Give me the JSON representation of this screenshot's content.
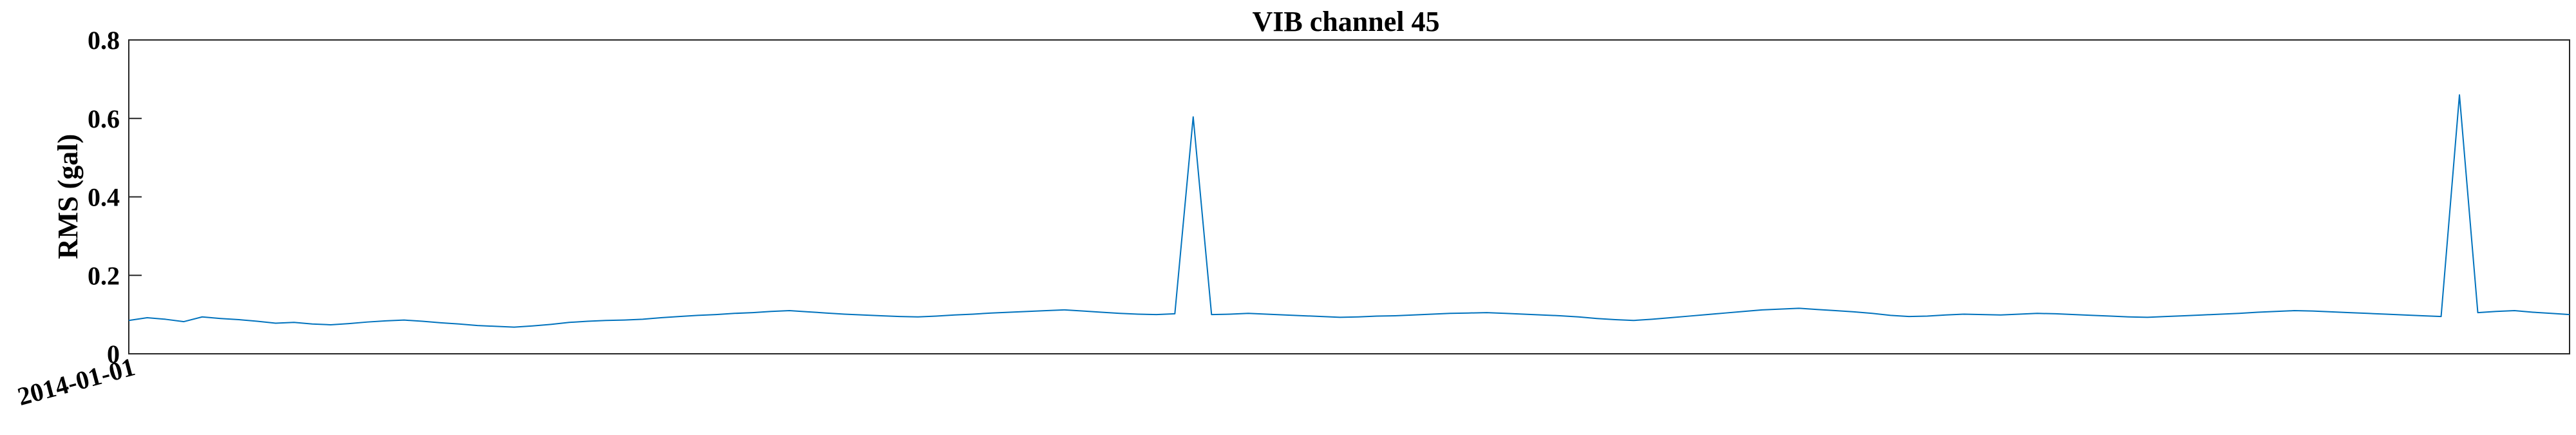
{
  "chart_data": {
    "type": "line",
    "title": "VIB channel 45",
    "xlabel": "",
    "ylabel": "RMS (gal)",
    "ylim": [
      0,
      0.8
    ],
    "yticks": [
      0,
      0.2,
      0.4,
      0.6,
      0.8
    ],
    "ytick_labels": [
      "0",
      "0.2",
      "0.4",
      "0.6",
      "0.8"
    ],
    "xlim": [
      0,
      1
    ],
    "xticks": [
      0
    ],
    "xtick_labels": [
      "2014-01-01"
    ],
    "grid": false,
    "colors": {
      "line": "#0072BD",
      "axes": "#262626"
    },
    "series": [
      {
        "values": [
          0.085,
          0.092,
          0.088,
          0.082,
          0.094,
          0.09,
          0.087,
          0.083,
          0.078,
          0.08,
          0.076,
          0.074,
          0.077,
          0.081,
          0.084,
          0.086,
          0.083,
          0.079,
          0.076,
          0.072,
          0.07,
          0.068,
          0.071,
          0.075,
          0.08,
          0.083,
          0.085,
          0.086,
          0.088,
          0.092,
          0.095,
          0.098,
          0.1,
          0.103,
          0.105,
          0.108,
          0.11,
          0.107,
          0.104,
          0.101,
          0.099,
          0.097,
          0.095,
          0.094,
          0.096,
          0.099,
          0.101,
          0.104,
          0.106,
          0.108,
          0.11,
          0.112,
          0.109,
          0.106,
          0.103,
          0.101,
          0.1,
          0.102,
          0.604,
          0.1,
          0.101,
          0.103,
          0.101,
          0.099,
          0.097,
          0.095,
          0.093,
          0.094,
          0.096,
          0.097,
          0.099,
          0.101,
          0.103,
          0.104,
          0.105,
          0.103,
          0.101,
          0.099,
          0.097,
          0.094,
          0.09,
          0.087,
          0.085,
          0.088,
          0.092,
          0.096,
          0.1,
          0.104,
          0.108,
          0.112,
          0.114,
          0.116,
          0.113,
          0.11,
          0.107,
          0.103,
          0.098,
          0.095,
          0.096,
          0.099,
          0.101,
          0.1,
          0.099,
          0.101,
          0.103,
          0.102,
          0.1,
          0.098,
          0.096,
          0.094,
          0.093,
          0.095,
          0.097,
          0.099,
          0.101,
          0.103,
          0.106,
          0.108,
          0.11,
          0.109,
          0.107,
          0.105,
          0.103,
          0.101,
          0.099,
          0.097,
          0.095,
          0.66,
          0.105,
          0.108,
          0.11,
          0.106,
          0.103,
          0.1
        ]
      }
    ]
  }
}
